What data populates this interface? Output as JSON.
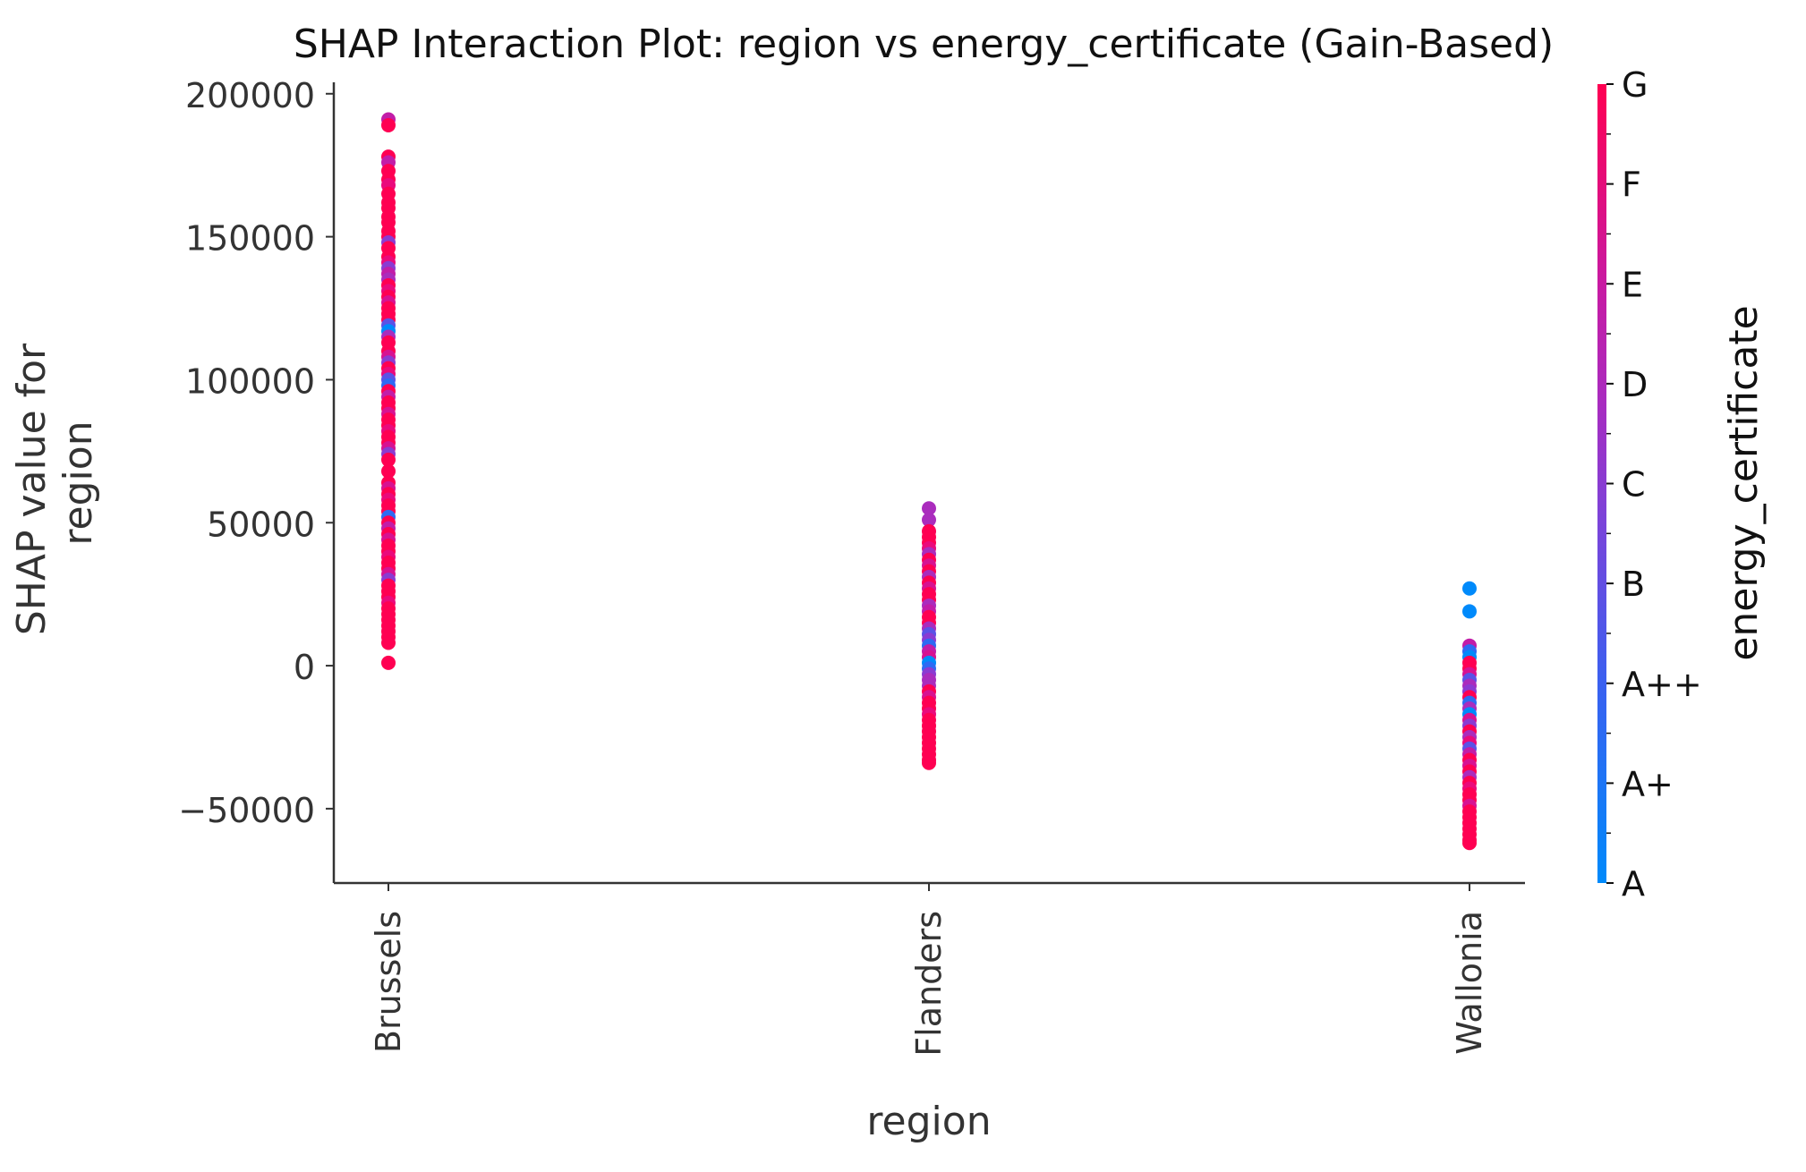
{
  "chart_data": {
    "type": "scatter",
    "title": "SHAP Interaction Plot: region vs energy_certificate (Gain-Based)",
    "xlabel": "region",
    "ylabel_lines": [
      "SHAP value for",
      "region"
    ],
    "categories": [
      "Brussels",
      "Flanders",
      "Wallonia"
    ],
    "yticks": [
      200000,
      150000,
      100000,
      50000,
      0,
      -50000
    ],
    "ytick_labels": [
      "200000",
      "150000",
      "100000",
      "50000",
      "0",
      "−50000"
    ],
    "ylim": [
      -76000,
      204000
    ],
    "colorbar": {
      "label": "energy_certificate",
      "levels": [
        "A",
        "A+",
        "A++",
        "B",
        "C",
        "D",
        "E",
        "F",
        "G"
      ],
      "colors": [
        "#008afb",
        "#2e6af3",
        "#5b52e6",
        "#8a3bd2",
        "#aa2cbd",
        "#c21da8",
        "#d71292",
        "#ea0a7c",
        "#ff0052"
      ]
    },
    "series": [
      {
        "category": "Brussels",
        "points": [
          [
            191000,
            5
          ],
          [
            189000,
            8
          ],
          [
            178000,
            8
          ],
          [
            176000,
            5
          ],
          [
            173000,
            8
          ],
          [
            170000,
            8
          ],
          [
            168000,
            7
          ],
          [
            165000,
            8
          ],
          [
            162000,
            8
          ],
          [
            160000,
            8
          ],
          [
            157000,
            8
          ],
          [
            155000,
            8
          ],
          [
            152000,
            8
          ],
          [
            150000,
            8
          ],
          [
            148000,
            3
          ],
          [
            146000,
            8
          ],
          [
            143000,
            8
          ],
          [
            141000,
            7
          ],
          [
            139000,
            3
          ],
          [
            137000,
            5
          ],
          [
            135000,
            4
          ],
          [
            133000,
            8
          ],
          [
            131000,
            7
          ],
          [
            129000,
            8
          ],
          [
            127000,
            6
          ],
          [
            125000,
            8
          ],
          [
            123000,
            8
          ],
          [
            121000,
            8
          ],
          [
            119000,
            2
          ],
          [
            117000,
            0
          ],
          [
            115000,
            4
          ],
          [
            113000,
            8
          ],
          [
            110000,
            8
          ],
          [
            108000,
            6
          ],
          [
            106000,
            3
          ],
          [
            104000,
            8
          ],
          [
            102000,
            7
          ],
          [
            100000,
            2
          ],
          [
            98000,
            1
          ],
          [
            96000,
            8
          ],
          [
            94000,
            5
          ],
          [
            92000,
            8
          ],
          [
            90000,
            8
          ],
          [
            88000,
            6
          ],
          [
            86000,
            8
          ],
          [
            84000,
            8
          ],
          [
            82000,
            7
          ],
          [
            80000,
            8
          ],
          [
            78000,
            8
          ],
          [
            76000,
            6
          ],
          [
            74000,
            3
          ],
          [
            72000,
            8
          ],
          [
            68000,
            8
          ],
          [
            64000,
            8
          ],
          [
            62000,
            6
          ],
          [
            60000,
            8
          ],
          [
            58000,
            7
          ],
          [
            56000,
            8
          ],
          [
            54000,
            8
          ],
          [
            52000,
            1
          ],
          [
            50000,
            8
          ],
          [
            48000,
            5
          ],
          [
            46000,
            8
          ],
          [
            44000,
            6
          ],
          [
            42000,
            8
          ],
          [
            40000,
            8
          ],
          [
            38000,
            7
          ],
          [
            36000,
            8
          ],
          [
            34000,
            8
          ],
          [
            32000,
            6
          ],
          [
            30000,
            3
          ],
          [
            28000,
            8
          ],
          [
            26000,
            8
          ],
          [
            24000,
            8
          ],
          [
            22000,
            7
          ],
          [
            20000,
            8
          ],
          [
            18000,
            8
          ],
          [
            16000,
            8
          ],
          [
            14000,
            8
          ],
          [
            12000,
            8
          ],
          [
            10000,
            8
          ],
          [
            8000,
            8
          ],
          [
            1000,
            8
          ]
        ]
      },
      {
        "category": "Flanders",
        "points": [
          [
            55000,
            4
          ],
          [
            51000,
            4
          ],
          [
            47000,
            8
          ],
          [
            45000,
            8
          ],
          [
            43000,
            8
          ],
          [
            41000,
            7
          ],
          [
            39000,
            4
          ],
          [
            37000,
            8
          ],
          [
            35000,
            6
          ],
          [
            33000,
            8
          ],
          [
            31000,
            4
          ],
          [
            29000,
            8
          ],
          [
            27000,
            6
          ],
          [
            25000,
            8
          ],
          [
            23000,
            8
          ],
          [
            21000,
            4
          ],
          [
            19000,
            5
          ],
          [
            17000,
            8
          ],
          [
            15000,
            8
          ],
          [
            13000,
            4
          ],
          [
            11000,
            2
          ],
          [
            9000,
            3
          ],
          [
            7000,
            1
          ],
          [
            5000,
            5
          ],
          [
            3000,
            6
          ],
          [
            1000,
            0
          ],
          [
            -1000,
            1
          ],
          [
            -3000,
            3
          ],
          [
            -5000,
            4
          ],
          [
            -7000,
            4
          ],
          [
            -9000,
            8
          ],
          [
            -11000,
            6
          ],
          [
            -13000,
            8
          ],
          [
            -15000,
            8
          ],
          [
            -17000,
            7
          ],
          [
            -19000,
            8
          ],
          [
            -21000,
            8
          ],
          [
            -23000,
            8
          ],
          [
            -25000,
            8
          ],
          [
            -27000,
            8
          ],
          [
            -29000,
            8
          ],
          [
            -31000,
            8
          ],
          [
            -33000,
            8
          ],
          [
            -34000,
            8
          ]
        ]
      },
      {
        "category": "Wallonia",
        "points": [
          [
            27000,
            0
          ],
          [
            19000,
            0
          ],
          [
            7000,
            5
          ],
          [
            5000,
            1
          ],
          [
            3000,
            0
          ],
          [
            1000,
            8
          ],
          [
            -1000,
            8
          ],
          [
            -3000,
            6
          ],
          [
            -5000,
            2
          ],
          [
            -7000,
            4
          ],
          [
            -9000,
            3
          ],
          [
            -11000,
            8
          ],
          [
            -13000,
            1
          ],
          [
            -15000,
            4
          ],
          [
            -17000,
            0
          ],
          [
            -19000,
            6
          ],
          [
            -21000,
            3
          ],
          [
            -23000,
            8
          ],
          [
            -25000,
            4
          ],
          [
            -27000,
            7
          ],
          [
            -29000,
            2
          ],
          [
            -31000,
            5
          ],
          [
            -33000,
            8
          ],
          [
            -35000,
            6
          ],
          [
            -37000,
            8
          ],
          [
            -39000,
            4
          ],
          [
            -41000,
            8
          ],
          [
            -43000,
            7
          ],
          [
            -45000,
            8
          ],
          [
            -47000,
            8
          ],
          [
            -49000,
            6
          ],
          [
            -51000,
            8
          ],
          [
            -53000,
            8
          ],
          [
            -55000,
            8
          ],
          [
            -57000,
            8
          ],
          [
            -59000,
            8
          ],
          [
            -61000,
            8
          ],
          [
            -62000,
            8
          ]
        ]
      }
    ]
  }
}
